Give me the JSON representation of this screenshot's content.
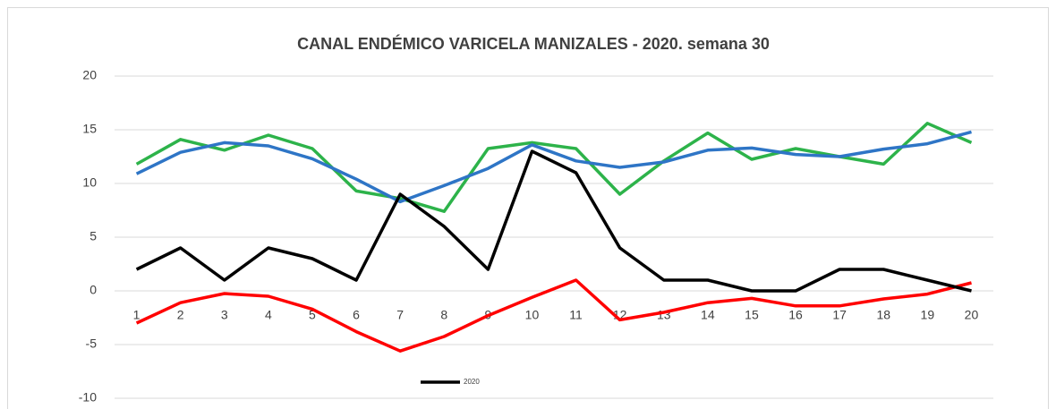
{
  "chart_data": {
    "type": "line",
    "title": "CANAL ENDÉMICO VARICELA MANIZALES - 2020. semana 30",
    "categories": [
      "1",
      "2",
      "3",
      "4",
      "5",
      "6",
      "7",
      "8",
      "9",
      "10",
      "11",
      "12",
      "13",
      "14",
      "15",
      "16",
      "17",
      "18",
      "19",
      "20"
    ],
    "series": [
      {
        "color": "#2db34a",
        "values": [
          11.8,
          14.1,
          13.1,
          14.5,
          13.25,
          9.3,
          8.6,
          7.4,
          13.25,
          13.8,
          13.25,
          9,
          12.1,
          14.7,
          12.25,
          13.25,
          12.5,
          11.8,
          15.6,
          13.8
        ]
      },
      {
        "color": "#2e75c6",
        "values": [
          10.9,
          12.9,
          13.8,
          13.5,
          12.3,
          10.4,
          8.3,
          9.8,
          11.4,
          13.6,
          12.1,
          11.5,
          12,
          13.1,
          13.3,
          12.7,
          12.5,
          13.2,
          13.7,
          14.8
        ]
      },
      {
        "color": "#ff0000",
        "values": [
          -3,
          -1.1,
          -0.25,
          -0.5,
          -1.7,
          -3.8,
          -5.6,
          -4.25,
          -2.3,
          -0.6,
          1,
          -2.7,
          -2,
          -1.1,
          -0.7,
          -1.4,
          -1.4,
          -0.75,
          -0.3,
          0.75
        ]
      },
      {
        "name": "2020",
        "color": "#000000",
        "values": [
          2,
          4,
          1,
          4,
          3,
          1,
          9,
          6,
          2,
          13,
          11,
          4,
          1,
          1,
          0,
          0,
          2,
          2,
          1,
          0
        ]
      }
    ],
    "ylim": [
      -10,
      20
    ],
    "yticks": [
      -10,
      -5,
      0,
      5,
      10,
      15,
      20
    ],
    "grid": true
  }
}
